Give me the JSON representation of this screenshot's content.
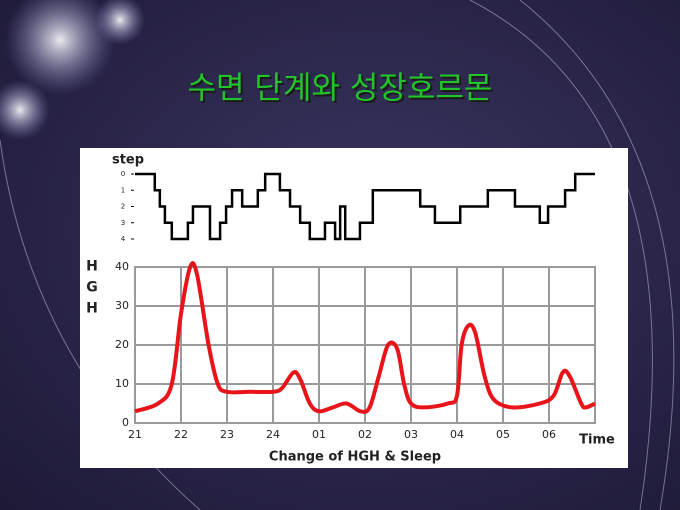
{
  "slide_title": "수면 단계와 성장호르몬",
  "caption": "Change of HGH & Sleep",
  "chart_data": [
    {
      "type": "step",
      "ylabel": "step",
      "x": [
        0,
        0.43,
        0.54,
        0.65,
        0.8,
        1.15,
        1.26,
        1.63,
        1.85,
        1.98,
        2.11,
        2.33,
        2.67,
        2.83,
        3.15,
        3.37,
        3.59,
        3.8,
        4.13,
        4.35,
        4.46,
        4.57,
        4.89,
        5.17,
        6.2,
        6.52,
        7.07,
        7.67,
        8.26,
        8.8,
        8.98,
        9.35,
        9.57,
        10
      ],
      "values": [
        0,
        1,
        2,
        3,
        4,
        3,
        2,
        4,
        3,
        2,
        1,
        2,
        1,
        0,
        1,
        2,
        3,
        4,
        3,
        4,
        2,
        4,
        3,
        1,
        2,
        3,
        2,
        1,
        2,
        3,
        2,
        1,
        0,
        0
      ],
      "color": "#000000",
      "xlim": [
        0,
        10
      ],
      "ylim": [
        4,
        0
      ],
      "yticks": [
        0,
        1,
        2,
        3,
        4
      ]
    },
    {
      "type": "line",
      "ylabel": "HGH",
      "xlabel": "Time",
      "x": [
        0,
        0.5,
        0.8,
        1.0,
        1.2,
        1.35,
        1.6,
        1.8,
        2.0,
        2.5,
        3.0,
        3.2,
        3.45,
        3.6,
        3.8,
        4.0,
        4.3,
        4.6,
        4.9,
        5.1,
        5.3,
        5.5,
        5.7,
        5.85,
        6.0,
        6.3,
        6.8,
        7.0,
        7.1,
        7.25,
        7.4,
        7.6,
        7.8,
        8.2,
        8.8,
        9.1,
        9.3,
        9.45,
        9.7,
        9.8,
        10
      ],
      "values": [
        3,
        5,
        10,
        28,
        40,
        38,
        20,
        10,
        8,
        8,
        8,
        9,
        13,
        11,
        5,
        3,
        4,
        5,
        3,
        4,
        12,
        20,
        19,
        10,
        5,
        4,
        5,
        7,
        20,
        25,
        23,
        12,
        6,
        4,
        5,
        7,
        13,
        12,
        5,
        4,
        5
      ],
      "color": "#e8141a",
      "xlim": [
        0,
        10
      ],
      "ylim": [
        0,
        40
      ],
      "yticks": [
        0,
        10,
        20,
        30,
        40
      ],
      "xticks": [
        {
          "value": 0,
          "label": "21"
        },
        {
          "value": 1,
          "label": "22"
        },
        {
          "value": 2,
          "label": "23"
        },
        {
          "value": 3,
          "label": "24"
        },
        {
          "value": 4,
          "label": "01"
        },
        {
          "value": 5,
          "label": "02"
        },
        {
          "value": 6,
          "label": "03"
        },
        {
          "value": 7,
          "label": "04"
        },
        {
          "value": 8,
          "label": "05"
        },
        {
          "value": 9,
          "label": "06"
        }
      ],
      "grid": true
    }
  ]
}
